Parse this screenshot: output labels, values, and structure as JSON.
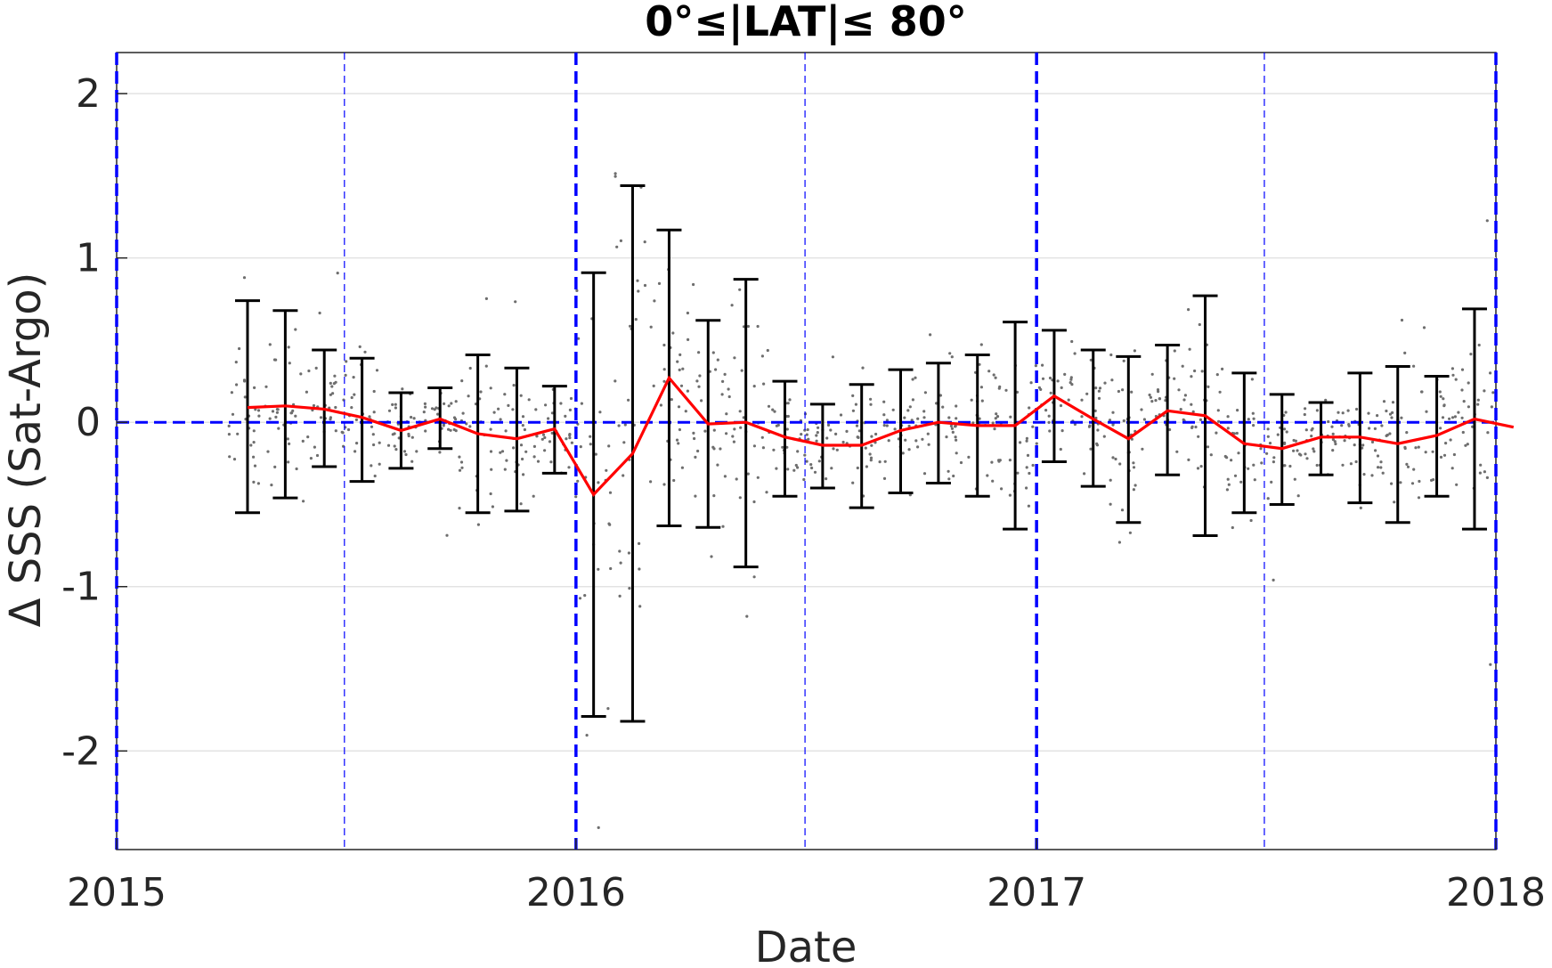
{
  "chart_data": {
    "type": "line",
    "title": "0°≤|LAT|≤ 80°",
    "xlabel": "Date",
    "ylabel": "Δ SSS (Sat-Argo)",
    "xlim": [
      "2015-01-01",
      "2018-01-01"
    ],
    "ylim": [
      -2.6,
      2.25
    ],
    "x_ticks": [
      "2015",
      "2016",
      "2017",
      "2018"
    ],
    "y_ticks": [
      -2,
      -1,
      0,
      1,
      2
    ],
    "y_tick_labels": [
      "-2",
      "-1",
      "0",
      "1",
      "2"
    ],
    "grid": true,
    "colors": {
      "mean_line": "#ff0000",
      "error_bars": "#000000",
      "scatter": "#6e6e6e",
      "reference_lines": "#0000ff",
      "grid": "#e3e3e3"
    },
    "reference_lines": {
      "horizontal_zero": 0,
      "year_boundaries": [
        "2015-01-01",
        "2016-01-01",
        "2017-01-01",
        "2018-01-01"
      ],
      "mid_year": [
        "2015-07-01",
        "2016-07-01",
        "2017-07-01"
      ]
    },
    "series": [
      {
        "type": "errorbar",
        "x": [
          "2015-04-15",
          "2015-05-15",
          "2015-06-15",
          "2015-07-15",
          "2015-08-15",
          "2015-09-15",
          "2015-10-15",
          "2015-11-15",
          "2015-12-15",
          "2016-01-15",
          "2016-02-15",
          "2016-03-15",
          "2016-04-15",
          "2016-05-15",
          "2016-06-15",
          "2016-07-15",
          "2016-08-15",
          "2016-09-15",
          "2016-10-15",
          "2016-11-15",
          "2016-12-15",
          "2017-01-15",
          "2017-02-15",
          "2017-03-15",
          "2017-04-15",
          "2017-05-15",
          "2017-06-15",
          "2017-07-15",
          "2017-08-15",
          "2017-09-15",
          "2017-10-15",
          "2017-11-15",
          "2017-12-15"
        ],
        "mean": [
          0.09,
          0.1,
          0.08,
          0.03,
          -0.05,
          0.02,
          -0.07,
          -0.1,
          -0.04,
          -0.44,
          -0.19,
          0.27,
          -0.01,
          0.0,
          -0.09,
          -0.14,
          -0.14,
          -0.05,
          0.0,
          -0.02,
          -0.02,
          0.16,
          0.02,
          -0.1,
          0.07,
          0.04,
          -0.13,
          -0.16,
          -0.09,
          -0.09,
          -0.13,
          -0.08,
          0.02
        ],
        "upper": [
          0.74,
          0.68,
          0.44,
          0.39,
          0.18,
          0.21,
          0.41,
          0.33,
          0.22,
          0.91,
          1.44,
          1.17,
          0.62,
          0.87,
          0.25,
          0.11,
          0.23,
          0.32,
          0.36,
          0.41,
          0.61,
          0.56,
          0.44,
          0.4,
          0.47,
          0.77,
          0.3,
          0.17,
          0.12,
          0.3,
          0.34,
          0.28,
          0.69
        ],
        "lower": [
          -0.55,
          -0.46,
          -0.27,
          -0.36,
          -0.28,
          -0.16,
          -0.55,
          -0.54,
          -0.31,
          -1.79,
          -1.82,
          -0.63,
          -0.64,
          -0.88,
          -0.45,
          -0.4,
          -0.52,
          -0.43,
          -0.37,
          -0.45,
          -0.65,
          -0.24,
          -0.39,
          -0.61,
          -0.32,
          -0.69,
          -0.55,
          -0.5,
          -0.32,
          -0.49,
          -0.61,
          -0.45,
          -0.65
        ],
        "end_point": {
          "x": "2018-01-15",
          "mean": -0.03
        }
      }
    ]
  }
}
